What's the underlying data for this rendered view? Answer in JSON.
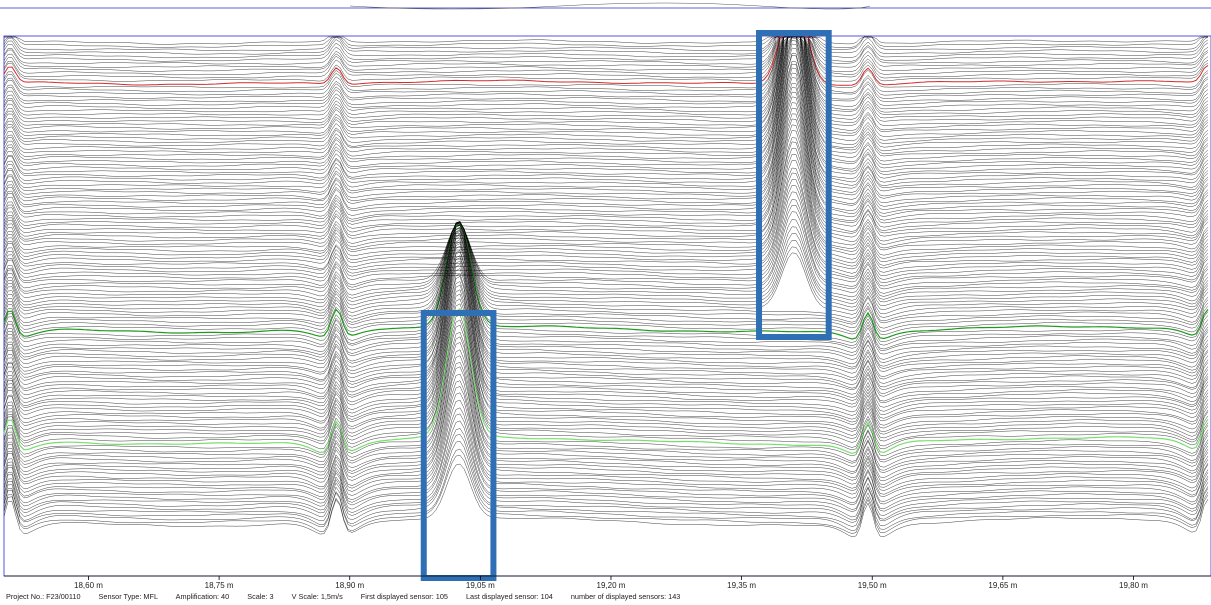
{
  "status_bar": {
    "project": "Project No.: F23/00110",
    "sensor_type": "Sensor Type: MFL",
    "amplification": "Amplification: 40",
    "scale": "Scale: 3",
    "v_scale": "V Scale: 1,5m/s",
    "first_sensor": "First displayed sensor: 105",
    "last_sensor": "Last displayed sensor: 104",
    "num_sensors": "number of displayed sensors: 143"
  },
  "colors": {
    "trace": "#000000",
    "highlight_red": "#d42a2a",
    "highlight_green": "#1f9a1f",
    "highlight_green_light": "#79dd6f",
    "annotation_box": "#2f6fb5",
    "frame": "#2b2bd8"
  },
  "chart_data": {
    "type": "line",
    "title": "",
    "xlabel": "",
    "ylabel": "",
    "x_unit": "m",
    "xlim": [
      18.503,
      19.889
    ],
    "x_ticks": [
      18.6,
      18.75,
      18.9,
      19.05,
      19.2,
      19.35,
      19.5,
      19.65,
      19.8
    ],
    "x_tick_labels": [
      "18,60 m",
      "18,75 m",
      "18,90 m",
      "19,05 m",
      "19,20 m",
      "19,35 m",
      "19,50 m",
      "19,65 m",
      "19,80 m"
    ],
    "grid": false,
    "sensors_displayed": 143,
    "girth_welds_m": [
      18.51,
      18.885,
      19.495,
      19.885
    ],
    "highlighted_traces": [
      {
        "color": "red",
        "level": "upper"
      },
      {
        "color": "green",
        "level": "lower"
      }
    ],
    "annotation_boxes": [
      {
        "x_range_m": [
          18.985,
          19.065
        ],
        "y_span": "lower"
      },
      {
        "x_range_m": [
          19.37,
          19.45
        ],
        "y_span": "upper"
      }
    ]
  }
}
